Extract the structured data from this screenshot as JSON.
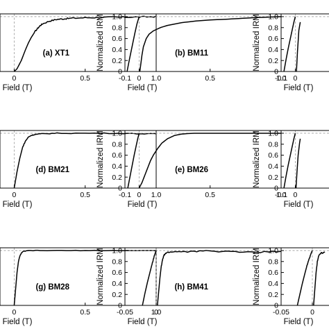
{
  "figure": {
    "x_axis_title": "Field (T)",
    "y_axis_title": "Normalized IRM"
  },
  "chart_data": [
    {
      "type": "line",
      "label": "(a) XT1",
      "row": 0,
      "col": 0,
      "xlim": [
        -0.1,
        1.0
      ],
      "ylim": [
        0,
        1.05
      ],
      "xticks": [
        0,
        0.5,
        1.0
      ],
      "xtick_labels": [
        "0",
        "0.5",
        "1.0"
      ],
      "yticks": [],
      "ytick_labels": [],
      "show_ylabel": false,
      "guides": true,
      "noise": 0.012,
      "series": [
        {
          "x": [
            0,
            0.02,
            0.05,
            0.08,
            0.1,
            0.12,
            0.15,
            0.18,
            0.2,
            0.25,
            0.3,
            0.35,
            0.4,
            0.5,
            0.6,
            0.7,
            0.8,
            0.9,
            1.0
          ],
          "y": [
            0.0,
            0.05,
            0.2,
            0.4,
            0.52,
            0.62,
            0.74,
            0.83,
            0.87,
            0.92,
            0.95,
            0.96,
            0.97,
            0.98,
            0.985,
            0.99,
            0.99,
            0.995,
            1.0
          ]
        }
      ]
    },
    {
      "type": "line",
      "label": "(b) BM11",
      "row": 0,
      "col": 1,
      "xlim": [
        -0.1,
        1.0
      ],
      "ylim": [
        0,
        1.05
      ],
      "xticks": [
        -0.1,
        0,
        0.5,
        1.0
      ],
      "xtick_labels": [
        "-0.1",
        "0",
        "0.5",
        "1.0"
      ],
      "yticks": [
        0,
        0.2,
        0.4,
        0.6,
        0.8,
        1.0
      ],
      "ytick_labels": [
        "0",
        "0.2",
        "0.4",
        "0.6",
        "0.8",
        "1.0"
      ],
      "show_ylabel": true,
      "guides": true,
      "noise": 0,
      "series": [
        {
          "x": [
            -0.085,
            -0.07,
            -0.05,
            -0.03,
            -0.015,
            0
          ],
          "y": [
            0.0,
            0.2,
            0.45,
            0.7,
            0.87,
            1.0
          ]
        },
        {
          "x": [
            0.005,
            0.01,
            0.02,
            0.03,
            0.05,
            0.07,
            0.1,
            0.15,
            0.2,
            0.3,
            0.4,
            0.5,
            0.6,
            0.7,
            0.8,
            0.9,
            1.0
          ],
          "y": [
            0.0,
            0.1,
            0.3,
            0.45,
            0.6,
            0.68,
            0.74,
            0.8,
            0.84,
            0.89,
            0.92,
            0.94,
            0.95,
            0.965,
            0.98,
            0.99,
            1.0
          ]
        }
      ]
    },
    {
      "type": "line",
      "label": "",
      "row": 0,
      "col": 2,
      "xlim": [
        -0.1,
        1.0
      ],
      "ylim": [
        0,
        1.05
      ],
      "xticks": [
        -0.1,
        0
      ],
      "xtick_labels": [
        "-0.1",
        "0"
      ],
      "yticks": [
        0,
        0.2,
        0.4,
        0.6,
        0.8,
        1.0
      ],
      "ytick_labels": [
        "0",
        "0.2",
        "0.4",
        "0.6",
        "0.8",
        "1.0"
      ],
      "show_ylabel": true,
      "guides": true,
      "noise": 0,
      "series": [
        {
          "x": [
            -0.08,
            -0.065,
            -0.05,
            -0.035,
            -0.02,
            -0.01,
            0
          ],
          "y": [
            0.0,
            0.22,
            0.42,
            0.6,
            0.78,
            0.9,
            1.0
          ]
        },
        {
          "x": [
            0.008,
            0.015,
            0.025,
            0.035
          ],
          "y": [
            0.0,
            0.35,
            0.75,
            0.9
          ]
        }
      ]
    },
    {
      "type": "line",
      "label": "(d) BM21",
      "row": 1,
      "col": 0,
      "xlim": [
        -0.1,
        1.0
      ],
      "ylim": [
        0,
        1.05
      ],
      "xticks": [
        0,
        0.5,
        1.0
      ],
      "xtick_labels": [
        "0",
        "0.5",
        "1.0"
      ],
      "yticks": [],
      "ytick_labels": [],
      "show_ylabel": false,
      "guides": true,
      "noise": 0.007,
      "series": [
        {
          "x": [
            0,
            0.01,
            0.02,
            0.04,
            0.06,
            0.08,
            0.1,
            0.12,
            0.15,
            0.2,
            0.3,
            0.5,
            0.7,
            0.9,
            1.0
          ],
          "y": [
            0.0,
            0.15,
            0.3,
            0.55,
            0.75,
            0.86,
            0.93,
            0.96,
            0.98,
            0.99,
            1.0,
            1.0,
            1.0,
            0.99,
            0.99
          ]
        }
      ]
    },
    {
      "type": "line",
      "label": "(e) BM26",
      "row": 1,
      "col": 1,
      "xlim": [
        -0.1,
        1.0
      ],
      "ylim": [
        0,
        1.05
      ],
      "xticks": [
        -0.1,
        0,
        0.5,
        1.0
      ],
      "xtick_labels": [
        "-0.1",
        "0",
        "0.5",
        "1.0"
      ],
      "yticks": [
        0,
        0.2,
        0.4,
        0.6,
        0.8,
        1.0
      ],
      "ytick_labels": [
        "0",
        "0.2",
        "0.4",
        "0.6",
        "0.8",
        "1.0"
      ],
      "show_ylabel": true,
      "guides": true,
      "noise": 0,
      "series": [
        {
          "x": [
            -0.08,
            -0.065,
            -0.05,
            -0.035,
            -0.02,
            -0.01,
            0
          ],
          "y": [
            0.0,
            0.2,
            0.4,
            0.6,
            0.78,
            0.9,
            1.0
          ]
        },
        {
          "x": [
            0.0,
            0.02,
            0.05,
            0.08,
            0.1,
            0.13,
            0.16,
            0.2,
            0.25,
            0.3,
            0.35,
            0.4,
            0.5,
            0.7,
            1.0
          ],
          "y": [
            0.0,
            0.1,
            0.3,
            0.5,
            0.6,
            0.72,
            0.82,
            0.9,
            0.96,
            0.985,
            0.995,
            1.0,
            1.0,
            1.0,
            1.0
          ]
        }
      ]
    },
    {
      "type": "line",
      "label": "",
      "row": 1,
      "col": 2,
      "xlim": [
        -0.1,
        1.0
      ],
      "ylim": [
        0,
        1.05
      ],
      "xticks": [
        -0.1,
        0
      ],
      "xtick_labels": [
        "-0.1",
        "0"
      ],
      "yticks": [
        0,
        0.2,
        0.4,
        0.6,
        0.8,
        1.0
      ],
      "ytick_labels": [
        "0",
        "0.2",
        "0.4",
        "0.6",
        "0.8",
        "1.0"
      ],
      "show_ylabel": true,
      "guides": true,
      "noise": 0,
      "series": [
        {
          "x": [
            -0.08,
            -0.065,
            -0.05,
            -0.035,
            -0.02,
            -0.01,
            0
          ],
          "y": [
            0.0,
            0.22,
            0.42,
            0.6,
            0.78,
            0.9,
            1.0
          ]
        },
        {
          "x": [
            0.005,
            0.012,
            0.02,
            0.03,
            0.035
          ],
          "y": [
            0.0,
            0.3,
            0.6,
            0.82,
            0.9
          ]
        }
      ]
    },
    {
      "type": "line",
      "label": "(g) BM28",
      "row": 2,
      "col": 0,
      "xlim": [
        -0.1,
        1.0
      ],
      "ylim": [
        0,
        1.05
      ],
      "xticks": [
        0,
        0.5,
        1.0
      ],
      "xtick_labels": [
        "0",
        "0.5",
        "1.0"
      ],
      "yticks": [],
      "ytick_labels": [],
      "show_ylabel": false,
      "guides": true,
      "noise": 0.004,
      "series": [
        {
          "x": [
            0,
            0.01,
            0.02,
            0.03,
            0.04,
            0.05,
            0.06,
            0.08,
            0.1,
            0.2,
            0.4,
            0.6,
            0.8,
            1.0
          ],
          "y": [
            0.0,
            0.3,
            0.6,
            0.8,
            0.9,
            0.95,
            0.98,
            0.99,
            1.0,
            1.0,
            1.0,
            1.0,
            1.0,
            1.0
          ]
        }
      ]
    },
    {
      "type": "line",
      "label": "(h) BM41",
      "row": 2,
      "col": 1,
      "xlim": [
        -0.05,
        0.2
      ],
      "ylim": [
        0,
        1.05
      ],
      "xticks": [
        -0.05,
        0
      ],
      "xtick_labels": [
        "-0.05",
        "0"
      ],
      "yticks": [
        0,
        0.2,
        0.4,
        0.6,
        0.8,
        1.0
      ],
      "ytick_labels": [
        "0",
        "0.2",
        "0.4",
        "0.6",
        "0.8",
        "1.0"
      ],
      "show_ylabel": true,
      "guides": true,
      "noise": 0.012,
      "series": [
        {
          "x": [
            -0.022,
            -0.018,
            -0.014,
            -0.01,
            -0.006,
            -0.003,
            0
          ],
          "y": [
            0.0,
            0.22,
            0.42,
            0.6,
            0.78,
            0.9,
            1.0
          ]
        },
        {
          "x": [
            0.002,
            0.004,
            0.006,
            0.008,
            0.01,
            0.012,
            0.015,
            0.02,
            0.03,
            0.05,
            0.08,
            0.12,
            0.16,
            0.2
          ],
          "y": [
            0.0,
            0.25,
            0.5,
            0.7,
            0.82,
            0.9,
            0.95,
            0.97,
            0.98,
            0.98,
            0.99,
            0.98,
            0.97,
            0.98
          ]
        }
      ]
    },
    {
      "type": "line",
      "label": "",
      "row": 2,
      "col": 2,
      "xlim": [
        -0.05,
        0.2
      ],
      "ylim": [
        0,
        1.05
      ],
      "xticks": [
        -0.05,
        0
      ],
      "xtick_labels": [
        "-0.05",
        "0"
      ],
      "yticks": [
        0,
        0.2,
        0.4,
        0.6,
        0.8,
        1.0
      ],
      "ytick_labels": [
        "0",
        "0.2",
        "0.4",
        "0.6",
        "0.8",
        "1.0"
      ],
      "show_ylabel": true,
      "guides": true,
      "noise": 0.012,
      "series": [
        {
          "x": [
            -0.024,
            -0.02,
            -0.016,
            -0.012,
            -0.008,
            -0.004,
            0
          ],
          "y": [
            0.0,
            0.2,
            0.4,
            0.58,
            0.75,
            0.88,
            1.0
          ]
        },
        {
          "x": [
            0.002,
            0.004,
            0.006,
            0.008,
            0.01,
            0.014,
            0.02
          ],
          "y": [
            0.0,
            0.3,
            0.6,
            0.8,
            0.9,
            0.95,
            0.97
          ]
        }
      ]
    }
  ]
}
